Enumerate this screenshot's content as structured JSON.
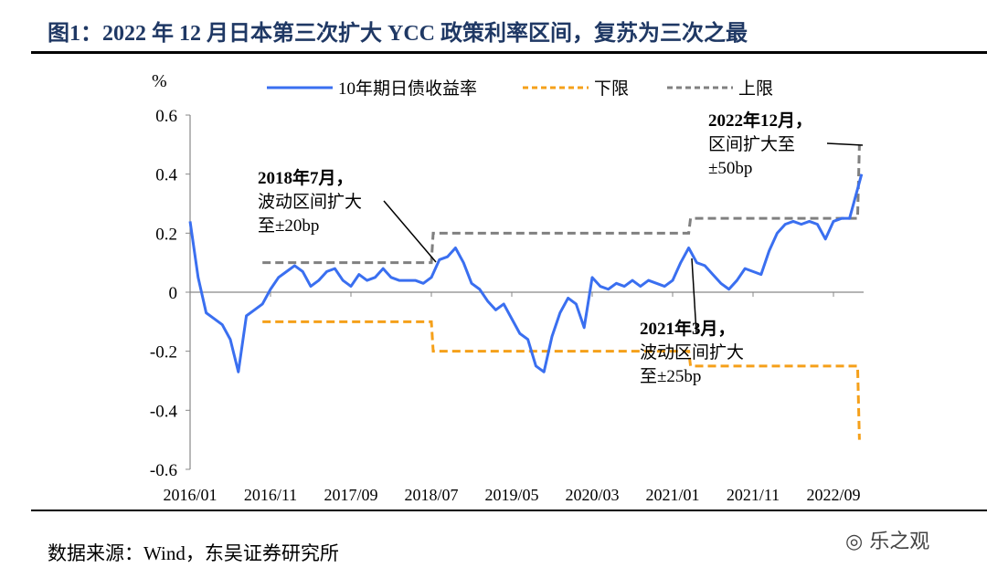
{
  "title": "图1：2022 年 12 月日本第三次扩大 YCC 政策利率区间，复苏为三次之最",
  "source": "数据来源：Wind，东吴证券研究所",
  "watermark": "乐之观",
  "chart_data": {
    "type": "line",
    "ylabel": "%",
    "ylim": [
      -0.6,
      0.6
    ],
    "yticks": [
      "0.6",
      "0.4",
      "0.2",
      "0",
      "-0.2",
      "-0.4",
      "-0.6"
    ],
    "xticks": [
      "2016/01",
      "2016/11",
      "2017/09",
      "2018/07",
      "2019/05",
      "2020/03",
      "2021/01",
      "2021/11",
      "2022/09"
    ],
    "legend_position": "top",
    "colors": {
      "yield": "#3a6ff0",
      "lower": "#f5a01a",
      "upper": "#808080"
    },
    "series": [
      {
        "name": "10年期日债收益率",
        "start": "2016/01",
        "frequency": "monthly",
        "values": [
          0.24,
          0.05,
          -0.07,
          -0.09,
          -0.11,
          -0.16,
          -0.27,
          -0.08,
          -0.06,
          -0.04,
          0.01,
          0.05,
          0.07,
          0.09,
          0.07,
          0.02,
          0.04,
          0.07,
          0.08,
          0.04,
          0.02,
          0.06,
          0.04,
          0.05,
          0.08,
          0.05,
          0.04,
          0.04,
          0.04,
          0.03,
          0.05,
          0.11,
          0.12,
          0.15,
          0.1,
          0.03,
          0.01,
          -0.03,
          -0.06,
          -0.04,
          -0.09,
          -0.14,
          -0.16,
          -0.25,
          -0.27,
          -0.15,
          -0.07,
          -0.02,
          -0.04,
          -0.12,
          0.05,
          0.02,
          0.01,
          0.03,
          0.02,
          0.04,
          0.02,
          0.04,
          0.03,
          0.02,
          0.04,
          0.1,
          0.15,
          0.1,
          0.09,
          0.06,
          0.03,
          0.01,
          0.04,
          0.08,
          0.07,
          0.06,
          0.14,
          0.2,
          0.23,
          0.24,
          0.23,
          0.24,
          0.23,
          0.18,
          0.24,
          0.25,
          0.25,
          0.4
        ]
      },
      {
        "name": "下限",
        "steps": [
          [
            "2016/10",
            -0.1
          ],
          [
            "2018/07",
            -0.2
          ],
          [
            "2021/03",
            -0.25
          ],
          [
            "2022/12",
            -0.5
          ]
        ]
      },
      {
        "name": "上限",
        "steps": [
          [
            "2016/10",
            0.1
          ],
          [
            "2018/07",
            0.2
          ],
          [
            "2021/03",
            0.25
          ],
          [
            "2022/12",
            0.5
          ]
        ]
      }
    ],
    "annotations": [
      {
        "lines": [
          "2018年7月，",
          "波动区间扩大",
          "至±20bp"
        ],
        "date": "2018/07",
        "value": 0.1
      },
      {
        "lines": [
          "2021年3月，",
          "波动区间扩大",
          "至±25bp"
        ],
        "date": "2021/03",
        "value": 0.12
      },
      {
        "lines": [
          "2022年12月，",
          "区间扩大至",
          "±50bp"
        ],
        "date": "2022/12",
        "value": 0.5
      }
    ]
  }
}
